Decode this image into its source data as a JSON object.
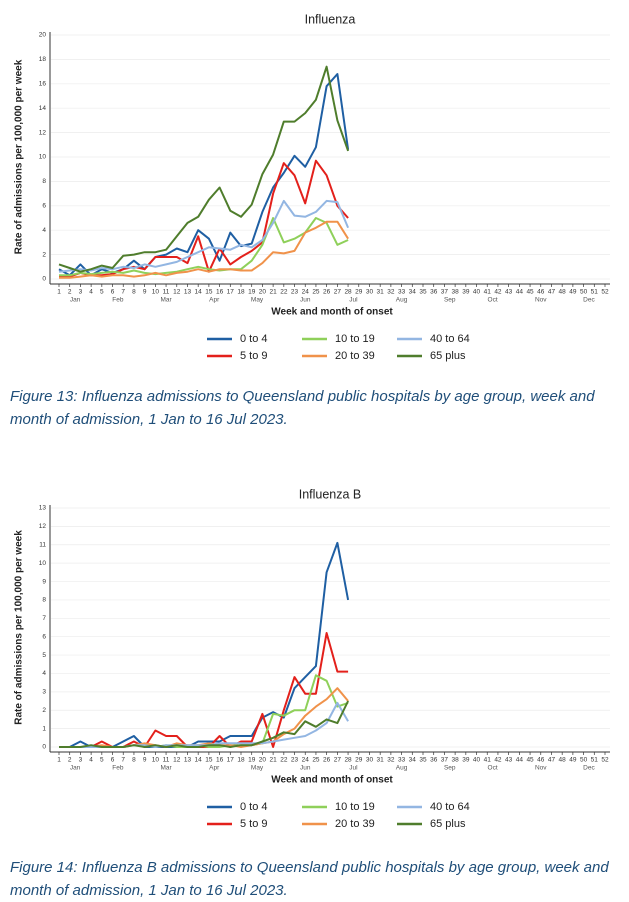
{
  "chart_data": [
    {
      "type": "line",
      "title": "Influenza",
      "x_label": "Week and month of onset",
      "y_label": "Rate of admissions per 100,000 per week",
      "x": [
        1,
        2,
        3,
        4,
        5,
        6,
        7,
        8,
        9,
        10,
        11,
        12,
        13,
        14,
        15,
        16,
        17,
        18,
        19,
        20,
        21,
        22,
        23,
        24,
        25,
        26,
        27,
        28
      ],
      "xlim": [
        1,
        52
      ],
      "xticks": [
        1,
        2,
        3,
        4,
        5,
        6,
        7,
        8,
        9,
        10,
        11,
        12,
        13,
        14,
        15,
        16,
        17,
        18,
        19,
        20,
        21,
        22,
        23,
        24,
        25,
        26,
        27,
        28,
        29,
        30,
        31,
        32,
        33,
        34,
        35,
        36,
        37,
        38,
        39,
        40,
        41,
        42,
        43,
        44,
        45,
        46,
        47,
        48,
        49,
        50,
        51,
        52
      ],
      "month_labels": [
        {
          "value": 2.5,
          "label": "Jan"
        },
        {
          "value": 6.5,
          "label": "Feb"
        },
        {
          "value": 11,
          "label": "Mar"
        },
        {
          "value": 15.5,
          "label": "Apr"
        },
        {
          "value": 19.5,
          "label": "May"
        },
        {
          "value": 24,
          "label": "Jun"
        },
        {
          "value": 28.5,
          "label": "Jul"
        },
        {
          "value": 33,
          "label": "Aug"
        },
        {
          "value": 37.5,
          "label": "Sep"
        },
        {
          "value": 41.5,
          "label": "Oct"
        },
        {
          "value": 46,
          "label": "Nov"
        },
        {
          "value": 50.5,
          "label": "Dec"
        }
      ],
      "ylim": [
        0,
        20
      ],
      "yticks": [
        0,
        2,
        4,
        6,
        8,
        10,
        12,
        14,
        16,
        18,
        20
      ],
      "grid": true,
      "series": [
        {
          "name": "0 to 4",
          "color": "#1f5fa3",
          "values": [
            0.8,
            0.3,
            1.2,
            0.3,
            0.8,
            0.5,
            0.8,
            1.5,
            0.8,
            1.8,
            2.0,
            2.5,
            2.2,
            4.0,
            3.3,
            1.5,
            3.8,
            2.7,
            2.9,
            5.5,
            7.5,
            8.7,
            10.1,
            9.2,
            10.8,
            15.8,
            16.8,
            10.6
          ]
        },
        {
          "name": "5 to 9",
          "color": "#e3201b",
          "values": [
            0.2,
            0.2,
            0.5,
            0.3,
            0.3,
            0.4,
            0.8,
            1.0,
            0.8,
            1.8,
            1.8,
            1.8,
            1.3,
            3.5,
            0.6,
            2.5,
            1.2,
            1.8,
            2.3,
            3.0,
            7.0,
            9.5,
            8.5,
            6.2,
            9.7,
            8.5,
            6.0,
            5.0
          ]
        },
        {
          "name": "10 to 19",
          "color": "#8fd05a",
          "values": [
            0.3,
            0.3,
            0.5,
            0.4,
            0.5,
            0.6,
            0.5,
            0.7,
            0.5,
            0.4,
            0.5,
            0.6,
            0.8,
            1.0,
            0.8,
            0.7,
            0.8,
            0.8,
            1.5,
            2.8,
            5.0,
            3.0,
            3.3,
            3.8,
            5.0,
            4.6,
            2.8,
            3.2
          ]
        },
        {
          "name": "20 to 39",
          "color": "#f0924a",
          "values": [
            0.1,
            0.1,
            0.2,
            0.3,
            0.2,
            0.3,
            0.3,
            0.2,
            0.3,
            0.5,
            0.3,
            0.5,
            0.6,
            0.8,
            0.6,
            0.8,
            0.8,
            0.7,
            0.7,
            1.3,
            2.2,
            2.1,
            2.3,
            3.8,
            4.2,
            4.7,
            4.7,
            3.3
          ]
        },
        {
          "name": "40 to 64",
          "color": "#93b6e2",
          "values": [
            0.6,
            0.7,
            0.8,
            0.7,
            0.9,
            0.8,
            1.0,
            0.9,
            1.2,
            1.0,
            1.2,
            1.4,
            1.8,
            2.2,
            2.6,
            2.5,
            2.4,
            2.8,
            2.6,
            3.2,
            4.6,
            6.4,
            5.2,
            5.1,
            5.5,
            6.4,
            6.3,
            4.2
          ]
        },
        {
          "name": "65 plus",
          "color": "#4f7d2c",
          "values": [
            1.2,
            0.9,
            0.6,
            0.8,
            1.1,
            0.9,
            1.9,
            2.0,
            2.2,
            2.2,
            2.4,
            3.5,
            4.6,
            5.1,
            6.5,
            7.5,
            5.6,
            5.1,
            6.1,
            8.6,
            10.2,
            12.9,
            12.9,
            13.6,
            14.7,
            17.4,
            13.0,
            10.5
          ]
        }
      ],
      "caption": "Figure 13: Influenza admissions to Queensland public hospitals by age group, week and month of admission, 1 Jan to 16 Jul 2023."
    },
    {
      "type": "line",
      "title": "Influenza B",
      "x_label": "Week and month of onset",
      "y_label": "Rate of admissions per 100,000 per week",
      "x": [
        1,
        2,
        3,
        4,
        5,
        6,
        7,
        8,
        9,
        10,
        11,
        12,
        13,
        14,
        15,
        16,
        17,
        18,
        19,
        20,
        21,
        22,
        23,
        24,
        25,
        26,
        27,
        28
      ],
      "xlim": [
        1,
        52
      ],
      "xticks": [
        1,
        2,
        3,
        4,
        5,
        6,
        7,
        8,
        9,
        10,
        11,
        12,
        13,
        14,
        15,
        16,
        17,
        18,
        19,
        20,
        21,
        22,
        23,
        24,
        25,
        26,
        27,
        28,
        29,
        30,
        31,
        32,
        33,
        34,
        35,
        36,
        37,
        38,
        39,
        40,
        41,
        42,
        43,
        44,
        45,
        46,
        47,
        48,
        49,
        50,
        51,
        52
      ],
      "month_labels": [
        {
          "value": 2.5,
          "label": "Jan"
        },
        {
          "value": 6.5,
          "label": "Feb"
        },
        {
          "value": 11,
          "label": "Mar"
        },
        {
          "value": 15.5,
          "label": "Apr"
        },
        {
          "value": 19.5,
          "label": "May"
        },
        {
          "value": 24,
          "label": "Jun"
        },
        {
          "value": 28.5,
          "label": "Jul"
        },
        {
          "value": 33,
          "label": "Aug"
        },
        {
          "value": 37.5,
          "label": "Sep"
        },
        {
          "value": 41.5,
          "label": "Oct"
        },
        {
          "value": 46,
          "label": "Nov"
        },
        {
          "value": 50.5,
          "label": "Dec"
        }
      ],
      "ylim": [
        0,
        13
      ],
      "yticks": [
        0,
        1,
        2,
        3,
        4,
        5,
        6,
        7,
        8,
        9,
        10,
        11,
        12,
        13
      ],
      "grid": true,
      "series": [
        {
          "name": "0 to 4",
          "color": "#1f5fa3",
          "values": [
            0,
            0,
            0.3,
            0,
            0,
            0,
            0.3,
            0.6,
            0,
            0,
            0,
            0,
            0,
            0.3,
            0.3,
            0.3,
            0.6,
            0.6,
            0.6,
            1.6,
            1.9,
            1.6,
            3.2,
            3.8,
            4.4,
            9.5,
            11.1,
            8.0
          ]
        },
        {
          "name": "5 to 9",
          "color": "#e3201b",
          "values": [
            0,
            0,
            0,
            0,
            0.3,
            0,
            0,
            0.3,
            0,
            0.9,
            0.6,
            0.6,
            0,
            0,
            0,
            0.6,
            0,
            0.3,
            0.3,
            1.8,
            0,
            2.0,
            3.8,
            2.9,
            2.9,
            6.2,
            4.1,
            4.1
          ]
        },
        {
          "name": "10 to 19",
          "color": "#8fd05a",
          "values": [
            0,
            0,
            0,
            0,
            0,
            0,
            0,
            0.1,
            0.1,
            0,
            0.1,
            0,
            0,
            0.1,
            0,
            0,
            0.1,
            0.1,
            0.1,
            0.2,
            1.8,
            1.7,
            2.0,
            2.0,
            3.9,
            3.6,
            2.2,
            2.4
          ]
        },
        {
          "name": "20 to 39",
          "color": "#f0924a",
          "values": [
            0,
            0,
            0,
            0,
            0.1,
            0,
            0,
            0.1,
            0.2,
            0.1,
            0,
            0.2,
            0.1,
            0.1,
            0.2,
            0.1,
            0.1,
            0,
            0.1,
            0.2,
            0.3,
            0.7,
            1.0,
            1.7,
            2.2,
            2.6,
            3.2,
            2.5
          ]
        },
        {
          "name": "40 to 64",
          "color": "#93b6e2",
          "values": [
            0,
            0,
            0,
            0,
            0,
            0,
            0,
            0.1,
            0.1,
            0,
            0.1,
            0.1,
            0.1,
            0.1,
            0.1,
            0.2,
            0.2,
            0.2,
            0.2,
            0.2,
            0.3,
            0.4,
            0.5,
            0.6,
            0.9,
            1.3,
            2.4,
            1.4
          ]
        },
        {
          "name": "65 plus",
          "color": "#4f7d2c",
          "values": [
            0,
            0,
            0,
            0.1,
            0,
            0,
            0,
            0.1,
            0,
            0.1,
            0,
            0.1,
            0,
            0,
            0.1,
            0.1,
            0,
            0.1,
            0.1,
            0.3,
            0.5,
            0.8,
            0.7,
            1.4,
            1.1,
            1.5,
            1.3,
            2.5
          ]
        }
      ],
      "caption": "Figure 14: Influenza B admissions to Queensland public hospitals by age group, week and month of admission, 1 Jan to 16 Jul 2023."
    }
  ]
}
